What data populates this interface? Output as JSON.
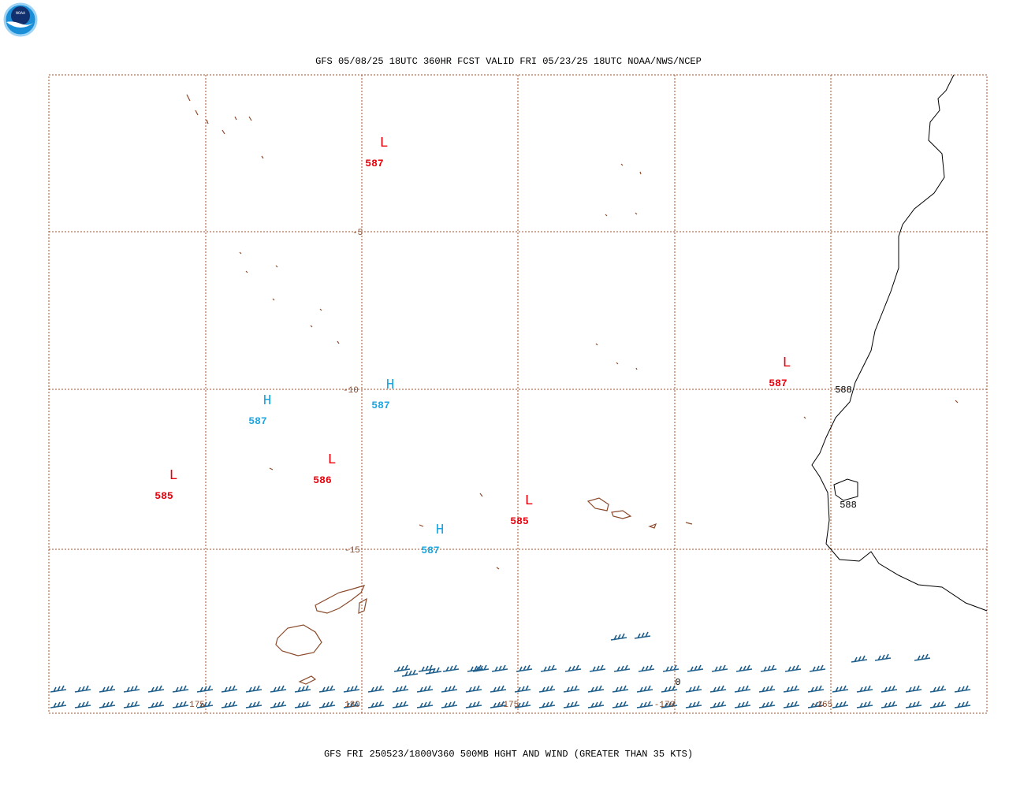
{
  "header": {
    "title": "GFS 05/08/25 18UTC 360HR FCST VALID FRI 05/23/25 18UTC NOAA/NWS/NCEP"
  },
  "footer": {
    "caption": "GFS FRI 250523/1800V360 500MB HGHT AND WIND (GREATER THAN 35 KTS)"
  },
  "logo": {
    "label": "NOAA"
  },
  "latitude_labels": [
    "-5",
    "-10",
    "-15"
  ],
  "longitude_labels": [
    "175",
    "180",
    "-175",
    "-170",
    "-165"
  ],
  "centers": [
    {
      "symbol": "L",
      "value": "587"
    },
    {
      "symbol": "L",
      "value": "587"
    },
    {
      "symbol": "H",
      "value": "587"
    },
    {
      "symbol": "H",
      "value": "587"
    },
    {
      "symbol": "L",
      "value": "586"
    },
    {
      "symbol": "L",
      "value": "585"
    },
    {
      "symbol": "L",
      "value": "585"
    },
    {
      "symbol": "H",
      "value": "587"
    }
  ],
  "contour_labels": [
    "588",
    "588",
    "0"
  ]
}
